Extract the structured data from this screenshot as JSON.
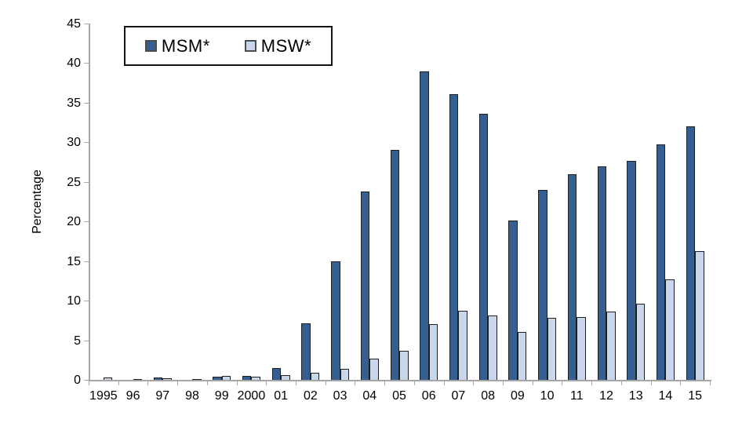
{
  "chart_data": {
    "type": "bar",
    "title": "",
    "xlabel": "",
    "ylabel": "Percentage",
    "ylim": [
      0,
      45
    ],
    "yticks": [
      0,
      5,
      10,
      15,
      20,
      25,
      30,
      35,
      40,
      45
    ],
    "grid": false,
    "legend_position": "top-left",
    "categories": [
      "1995",
      "96",
      "97",
      "98",
      "99",
      "2000",
      "01",
      "02",
      "03",
      "04",
      "05",
      "06",
      "07",
      "08",
      "09",
      "10",
      "11",
      "12",
      "13",
      "14",
      "15"
    ],
    "series": [
      {
        "name": "MSM*",
        "color": "#365F91",
        "border_color": "#1F1F1F",
        "values": [
          0,
          0,
          0.3,
          0,
          0.4,
          0.5,
          1.5,
          7.1,
          15.0,
          23.8,
          29.0,
          39.0,
          36.1,
          33.6,
          20.1,
          24.0,
          26.0,
          27.0,
          27.7,
          29.7,
          32.0
        ]
      },
      {
        "name": "MSW*",
        "color": "#C9D6EC",
        "border_color": "#1F1F1F",
        "values": [
          0.3,
          0.1,
          0.15,
          0.1,
          0.45,
          0.4,
          0.6,
          0.9,
          1.4,
          2.7,
          3.7,
          7.0,
          8.7,
          8.1,
          6.0,
          7.8,
          7.9,
          8.6,
          9.6,
          12.7,
          16.3
        ]
      }
    ],
    "axis_color": "#A6A6A6",
    "text_color": "#000000"
  }
}
